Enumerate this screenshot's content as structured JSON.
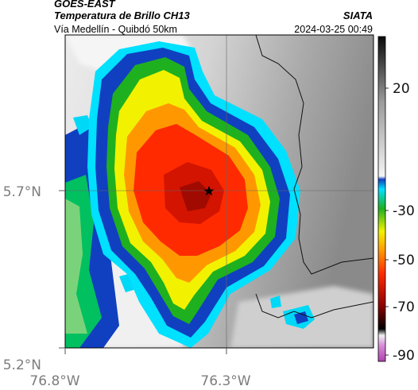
{
  "header": {
    "title_satellite": "GOES-EAST",
    "title_product": "Temperatura de Brillo CH13",
    "route": "Vía Medellín - Quibdó 50km",
    "organization": "SIATA",
    "timestamp": "2024-03-25 00:49"
  },
  "map": {
    "lat_labels": [
      "5.7°N",
      "5.2°N"
    ],
    "lon_labels": [
      "76.8°W",
      "76.3°W"
    ],
    "center_marker": "star-icon",
    "gridlines": true,
    "borders": true
  },
  "colorbar": {
    "tick_labels": [
      "20",
      "-30",
      "-50",
      "-70",
      "-90"
    ],
    "colors": {
      "cold_purple": "#b040b0",
      "dark_red": "#8b0000",
      "red": "#ff2a00",
      "orange": "#ff9800",
      "yellow": "#f2f200",
      "green": "#1fb01f",
      "cyan": "#00e0ff",
      "blue": "#1040c0",
      "gray": "#a0a0a0",
      "black": "#000000"
    }
  }
}
